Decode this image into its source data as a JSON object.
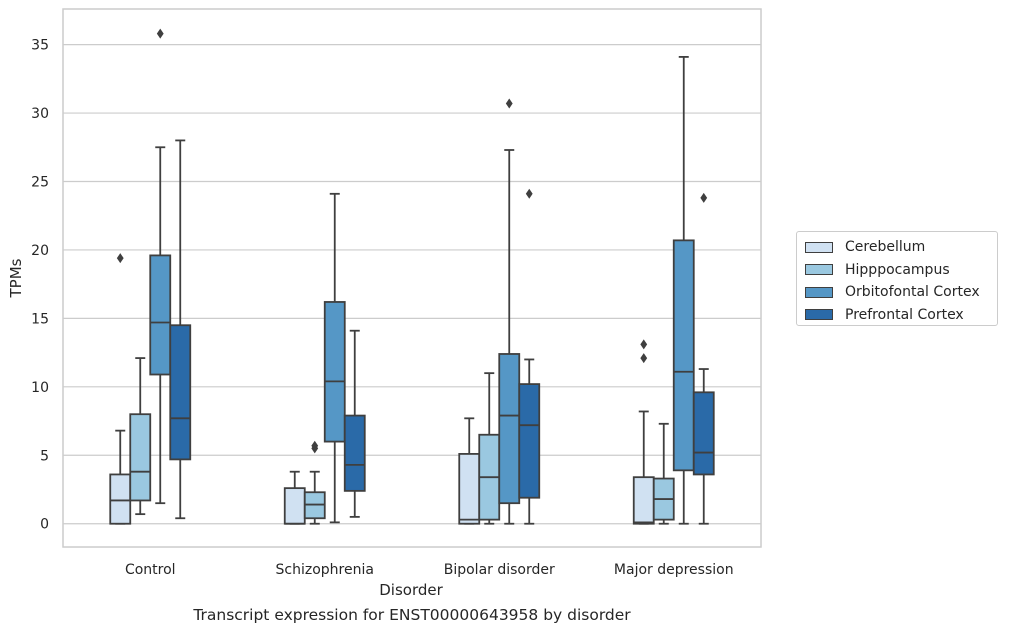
{
  "chart_data": {
    "type": "box",
    "title": "",
    "caption": "Transcript expression for ENST00000643958 by disorder",
    "xlabel": "Disorder",
    "ylabel": "TPMs",
    "ylim": [
      -1.7,
      37.6
    ],
    "yticks": [
      0,
      5,
      10,
      15,
      20,
      25,
      30,
      35
    ],
    "grid": "horizontal",
    "legend_position": "right",
    "categories": [
      "Control",
      "Schizophrenia",
      "Bipolar disorder",
      "Major depression"
    ],
    "series": [
      {
        "name": "Cerebellum",
        "color": "#d0e1f2",
        "boxes": [
          {
            "whisker_low": 0,
            "q1": 0,
            "median": 1.7,
            "q3": 3.6,
            "whisker_high": 6.8,
            "outliers": [
              19.4
            ]
          },
          {
            "whisker_low": 0,
            "q1": 0,
            "median": 0,
            "q3": 2.6,
            "whisker_high": 3.8,
            "outliers": []
          },
          {
            "whisker_low": 0,
            "q1": 0,
            "median": 0.3,
            "q3": 5.1,
            "whisker_high": 7.7,
            "outliers": []
          },
          {
            "whisker_low": 0,
            "q1": 0,
            "median": 0.1,
            "q3": 3.4,
            "whisker_high": 8.2,
            "outliers": [
              12.1,
              13.1
            ]
          }
        ]
      },
      {
        "name": "Hipppocampus",
        "color": "#9ac8e0",
        "boxes": [
          {
            "whisker_low": 0.7,
            "q1": 1.7,
            "median": 3.8,
            "q3": 8.0,
            "whisker_high": 12.1,
            "outliers": []
          },
          {
            "whisker_low": 0,
            "q1": 0.4,
            "median": 1.4,
            "q3": 2.3,
            "whisker_high": 3.8,
            "outliers": [
              5.5,
              5.7
            ]
          },
          {
            "whisker_low": 0,
            "q1": 0.3,
            "median": 3.4,
            "q3": 6.5,
            "whisker_high": 11.0,
            "outliers": []
          },
          {
            "whisker_low": 0,
            "q1": 0.3,
            "median": 1.8,
            "q3": 3.3,
            "whisker_high": 7.3,
            "outliers": []
          }
        ]
      },
      {
        "name": "Orbitofontal Cortex",
        "color": "#5597c6",
        "boxes": [
          {
            "whisker_low": 1.5,
            "q1": 10.9,
            "median": 14.7,
            "q3": 19.6,
            "whisker_high": 27.5,
            "outliers": [
              35.8
            ]
          },
          {
            "whisker_low": 0.1,
            "q1": 6.0,
            "median": 10.4,
            "q3": 16.2,
            "whisker_high": 24.1,
            "outliers": []
          },
          {
            "whisker_low": 0,
            "q1": 1.5,
            "median": 7.9,
            "q3": 12.4,
            "whisker_high": 27.3,
            "outliers": [
              30.7
            ]
          },
          {
            "whisker_low": 0,
            "q1": 3.9,
            "median": 11.1,
            "q3": 20.7,
            "whisker_high": 34.1,
            "outliers": []
          }
        ]
      },
      {
        "name": "Prefrontal Cortex",
        "color": "#2a6aa8",
        "boxes": [
          {
            "whisker_low": 0.4,
            "q1": 4.7,
            "median": 7.7,
            "q3": 14.5,
            "whisker_high": 28.0,
            "outliers": []
          },
          {
            "whisker_low": 0.5,
            "q1": 2.4,
            "median": 4.3,
            "q3": 7.9,
            "whisker_high": 14.1,
            "outliers": []
          },
          {
            "whisker_low": 0,
            "q1": 1.9,
            "median": 7.2,
            "q3": 10.2,
            "whisker_high": 12.0,
            "outliers": [
              24.1
            ]
          },
          {
            "whisker_low": 0,
            "q1": 3.6,
            "median": 5.2,
            "q3": 9.6,
            "whisker_high": 11.3,
            "outliers": [
              23.8
            ]
          }
        ]
      }
    ]
  }
}
